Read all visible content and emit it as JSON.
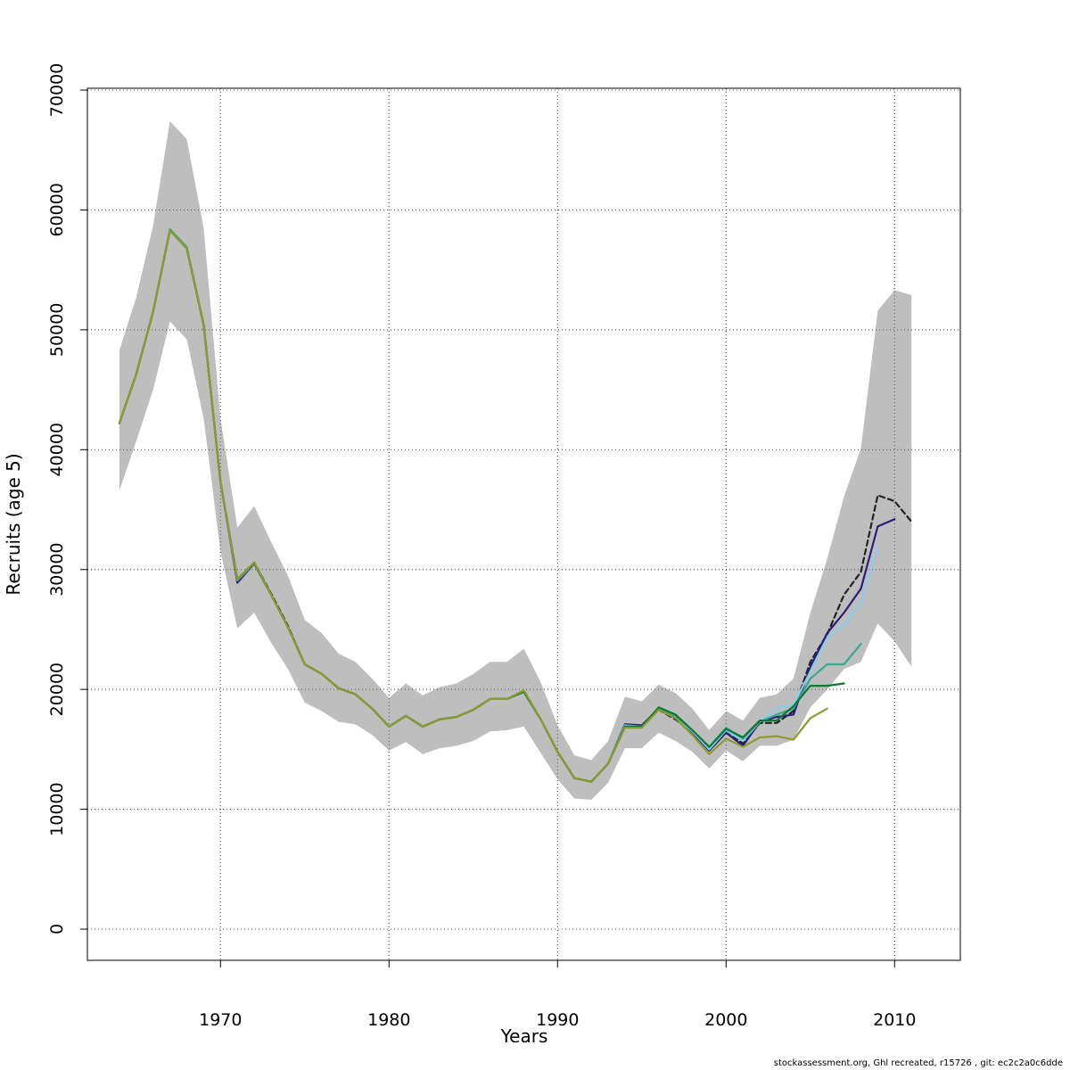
{
  "chart_data": {
    "type": "line",
    "xlabel": "Years",
    "ylabel": "Recruits (age 5)",
    "xlim": [
      1962.1,
      2013.9
    ],
    "ylim": [
      -2600,
      70150
    ],
    "x_ticks": [
      1970,
      1980,
      1990,
      2000,
      2010
    ],
    "y_ticks": [
      0,
      10000,
      20000,
      30000,
      40000,
      50000,
      60000,
      70000
    ],
    "grid": true,
    "band": {
      "color": "#bebebe",
      "x_start": 1964,
      "upper": [
        48300,
        52700,
        58700,
        67400,
        65900,
        58500,
        42600,
        33500,
        35300,
        32300,
        29500,
        25800,
        24700,
        23000,
        22300,
        20900,
        19300,
        20500,
        19500,
        20200,
        20500,
        21300,
        22300,
        22300,
        23400,
        20600,
        17000,
        14500,
        14100,
        15700,
        19400,
        19000,
        20400,
        19700,
        18400,
        16600,
        18200,
        17400,
        19300,
        19600,
        20900,
        26400,
        30900,
        36100,
        40100,
        51600,
        53300,
        52900
      ],
      "lower": [
        36600,
        40700,
        45000,
        50700,
        49200,
        42600,
        31500,
        25100,
        26400,
        23900,
        21700,
        18900,
        18200,
        17300,
        17100,
        16200,
        14900,
        15600,
        14600,
        15100,
        15300,
        15700,
        16500,
        16600,
        16900,
        14700,
        12500,
        10900,
        10800,
        12200,
        15100,
        15100,
        16400,
        15700,
        14800,
        13400,
        14900,
        14000,
        15300,
        15300,
        15800,
        18500,
        20000,
        21700,
        22300,
        25500,
        24000,
        21900
      ]
    },
    "series": [
      {
        "color": "#222222",
        "dashed": true,
        "x_start": 1964,
        "values": [
          42200,
          46300,
          51500,
          58300,
          56800,
          50400,
          37300,
          29200,
          30600,
          28000,
          25300,
          22100,
          21300,
          20100,
          19600,
          18400,
          16900,
          17800,
          16900,
          17500,
          17700,
          18300,
          19200,
          19200,
          19900,
          17500,
          14800,
          12600,
          12300,
          13800,
          16900,
          16900,
          18300,
          17500,
          16400,
          14900,
          16400,
          15500,
          17200,
          17200,
          18200,
          22300,
          24600,
          27900,
          29800,
          36200,
          35700,
          34000
        ]
      },
      {
        "color": "#2b1d7a",
        "dashed": false,
        "x_start": 1964,
        "values": [
          42200,
          46300,
          51500,
          58300,
          56800,
          50400,
          37300,
          28900,
          30500,
          27900,
          25200,
          22100,
          21300,
          20100,
          19600,
          18400,
          16900,
          17800,
          16900,
          17500,
          17700,
          18300,
          19200,
          19200,
          19800,
          17500,
          14800,
          12600,
          12300,
          13800,
          17100,
          17000,
          18400,
          17600,
          16400,
          14900,
          16400,
          15300,
          17300,
          17700,
          17900,
          21900,
          24700,
          26400,
          28400,
          33600,
          34200
        ]
      },
      {
        "color": "#87ceeb",
        "dashed": false,
        "x_start": 1964,
        "values": [
          42200,
          46300,
          51500,
          58300,
          56800,
          50400,
          37300,
          29100,
          30500,
          27900,
          25200,
          22100,
          21300,
          20100,
          19600,
          18400,
          16900,
          17800,
          16900,
          17500,
          17700,
          18300,
          19200,
          19200,
          19800,
          17500,
          14800,
          12600,
          12300,
          13800,
          17000,
          16900,
          18400,
          17700,
          16500,
          15000,
          16600,
          15700,
          17300,
          18400,
          18700,
          21500,
          24300,
          25400,
          27200,
          31800
        ]
      },
      {
        "color": "#3aa88f",
        "dashed": false,
        "x_start": 1964,
        "values": [
          42200,
          46300,
          51500,
          58400,
          56900,
          50400,
          37300,
          29100,
          30600,
          27900,
          25200,
          22100,
          21300,
          20100,
          19600,
          18400,
          16900,
          17800,
          16900,
          17500,
          17700,
          18300,
          19200,
          19200,
          19800,
          17500,
          14800,
          12600,
          12300,
          13800,
          16900,
          16900,
          18400,
          17800,
          16600,
          15200,
          16800,
          15900,
          17300,
          17900,
          18400,
          20900,
          22100,
          22100,
          23800
        ]
      },
      {
        "color": "#0d7a33",
        "dashed": false,
        "x_start": 1964,
        "values": [
          42200,
          46300,
          51500,
          58300,
          56800,
          50400,
          37300,
          29200,
          30500,
          27900,
          25200,
          22100,
          21300,
          20100,
          19600,
          18400,
          16900,
          17800,
          16900,
          17500,
          17700,
          18300,
          19200,
          19200,
          19800,
          17500,
          14800,
          12600,
          12300,
          13800,
          16900,
          16900,
          18500,
          17900,
          16600,
          15200,
          16700,
          16000,
          17400,
          17400,
          18600,
          20300,
          20300,
          20500
        ]
      },
      {
        "color": "#8f9a2c",
        "dashed": false,
        "x_start": 1964,
        "values": [
          42200,
          46300,
          51500,
          58300,
          56800,
          50400,
          37300,
          29200,
          30600,
          27900,
          25200,
          22100,
          21300,
          20100,
          19600,
          18400,
          16900,
          17800,
          16900,
          17500,
          17700,
          18300,
          19200,
          19200,
          19900,
          17500,
          14800,
          12600,
          12300,
          13800,
          16800,
          16800,
          18300,
          17600,
          16200,
          14600,
          15900,
          15200,
          16000,
          16100,
          15800,
          17600,
          18400
        ]
      }
    ]
  },
  "footer": "stockassessment.org, Ghl  recreated, r15726 , git: ec2c2a0c6dde"
}
